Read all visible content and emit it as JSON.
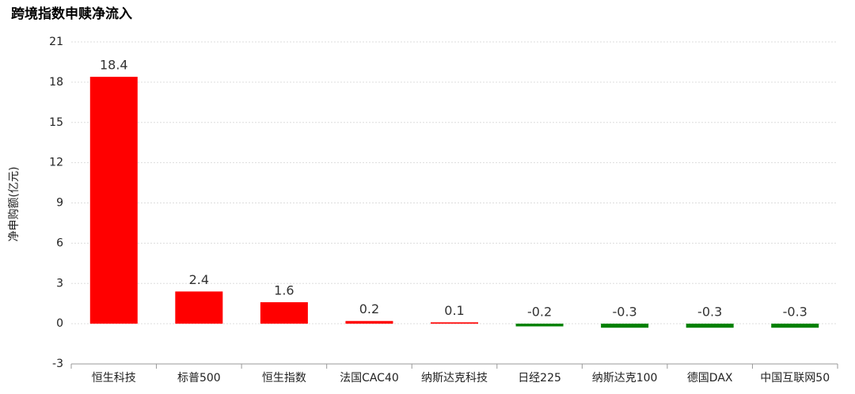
{
  "chart_data": {
    "type": "bar",
    "title": "跨境指数申赎净流入",
    "y_label": "净申购额(亿元)",
    "categories": [
      "恒生科技",
      "标普500",
      "恒生指数",
      "法国CAC40",
      "纳斯达克科技",
      "日经225",
      "纳斯达克100",
      "德国DAX",
      "中国互联网50"
    ],
    "values": [
      18.4,
      2.4,
      1.6,
      0.2,
      0.1,
      -0.2,
      -0.3,
      -0.3,
      -0.3
    ],
    "positive_color": "#ff0000",
    "negative_color": "#008000",
    "ylim": [
      -3,
      21
    ],
    "yticks": [
      -3,
      0,
      3,
      6,
      9,
      12,
      15,
      18,
      21
    ],
    "grid": true
  }
}
